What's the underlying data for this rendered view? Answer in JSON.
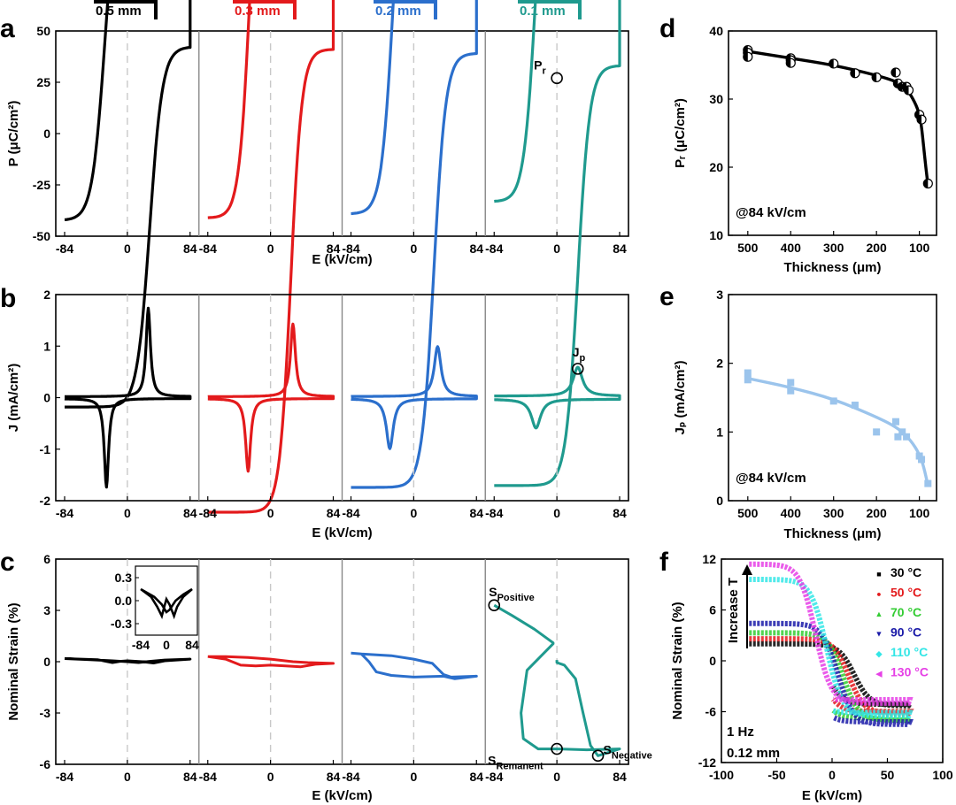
{
  "panel_letters": [
    "a",
    "b",
    "c",
    "d",
    "e",
    "f"
  ],
  "thickness_labels": [
    {
      "text": "0.5 mm",
      "color": "#000000"
    },
    {
      "text": "0.3 mm",
      "color": "#e31a1c"
    },
    {
      "text": "0.2 mm",
      "color": "#2b6fcc"
    },
    {
      "text": "0.1 mm",
      "color": "#1f9a8e"
    }
  ],
  "series_colors": [
    "#000000",
    "#e31a1c",
    "#2b6fcc",
    "#1f9a8e"
  ],
  "chart_data": [
    {
      "id": "a",
      "type": "line",
      "title": "",
      "xlabel": "E (kV/cm)",
      "ylabel": "P (μC/cm²)",
      "xticks": [
        "-84",
        "0",
        "84"
      ],
      "yticks": [
        50,
        25,
        0,
        -25,
        -50
      ],
      "ylim": [
        -50,
        50
      ],
      "annotations": [
        {
          "text": "P",
          "sub": "r",
          "series": 3,
          "x": 0,
          "y": 27
        }
      ],
      "series": [
        {
          "label": "0.5 mm",
          "x_range": [
            -84,
            84
          ],
          "pmax": 42,
          "pr": 37,
          "ec": 30,
          "shape": 17
        },
        {
          "label": "0.3 mm",
          "x_range": [
            -84,
            84
          ],
          "pmax": 41,
          "pr": 35,
          "ec": 27,
          "shape": 15
        },
        {
          "label": "0.2 mm",
          "x_range": [
            -84,
            84
          ],
          "pmax": 39,
          "pr": 32,
          "ec": 27,
          "shape": 16
        },
        {
          "label": "0.1 mm",
          "x_range": [
            -84,
            84
          ],
          "pmax": 33,
          "pr": 27,
          "ec": 28,
          "shape": 16
        }
      ]
    },
    {
      "id": "b",
      "type": "line",
      "title": "",
      "xlabel": "E (kV/cm)",
      "ylabel": "J (mA/cm²)",
      "xticks": [
        "-84",
        "0",
        "84"
      ],
      "yticks": [
        2,
        1,
        0,
        -1,
        -2
      ],
      "ylim": [
        -2,
        2
      ],
      "annotations": [
        {
          "text": "J",
          "sub": "p",
          "series": 3,
          "x": 28,
          "y": 0.56
        }
      ],
      "series": [
        {
          "label": "0.5 mm",
          "peak_x": 28,
          "peak": 1.72,
          "width": 3.5,
          "tail": 0.06
        },
        {
          "label": "0.3 mm",
          "peak_x": 30,
          "peak": 1.41,
          "width": 4.0,
          "tail": 0.06
        },
        {
          "label": "0.2 mm",
          "peak_x": 32,
          "peak": 0.97,
          "width": 5.5,
          "tail": 0.07
        },
        {
          "label": "0.1 mm",
          "peak_x": 28,
          "peak": 0.56,
          "width": 7.5,
          "tail": 0.1
        }
      ]
    },
    {
      "id": "c",
      "type": "line",
      "title": "",
      "xlabel": "E (kV/cm)",
      "ylabel": "Nominal Strain (%)",
      "xticks": [
        "-84",
        "0",
        "84"
      ],
      "yticks": [
        6,
        3,
        0,
        -3,
        -6
      ],
      "ylim": [
        -6,
        6
      ],
      "annotations": [
        {
          "text": "S",
          "sub": "Positive",
          "x": -84,
          "y": 3.3
        },
        {
          "text": "S",
          "sub": "Remanent",
          "x": 0,
          "y": -5.1
        },
        {
          "text": "S",
          "sub": "Negative",
          "x": 55,
          "y": -5.5
        }
      ],
      "series": [
        {
          "label": "0.5 mm",
          "points": [
            [
              -84,
              0.18
            ],
            [
              -40,
              0.12
            ],
            [
              -20,
              -0.05
            ],
            [
              -10,
              0.02
            ],
            [
              0,
              0.05
            ],
            [
              20,
              0.0
            ],
            [
              35,
              -0.08
            ],
            [
              50,
              0.05
            ],
            [
              84,
              0.15
            ],
            [
              50,
              0.1
            ],
            [
              30,
              0.02
            ],
            [
              15,
              -0.05
            ],
            [
              0,
              0.0
            ],
            [
              -20,
              0.05
            ],
            [
              -50,
              0.12
            ],
            [
              -84,
              0.18
            ]
          ]
        },
        {
          "label": "0.3 mm",
          "points": [
            [
              -84,
              0.3
            ],
            [
              -60,
              0.15
            ],
            [
              -40,
              -0.2
            ],
            [
              -20,
              -0.25
            ],
            [
              0,
              -0.2
            ],
            [
              20,
              -0.25
            ],
            [
              40,
              -0.3
            ],
            [
              60,
              -0.15
            ],
            [
              84,
              -0.1
            ],
            [
              50,
              -0.05
            ],
            [
              30,
              0.0
            ],
            [
              0,
              0.15
            ],
            [
              -30,
              0.25
            ],
            [
              -60,
              0.3
            ],
            [
              -84,
              0.3
            ]
          ]
        },
        {
          "label": "0.2 mm",
          "points": [
            [
              -84,
              0.5
            ],
            [
              -70,
              0.45
            ],
            [
              -60,
              0.0
            ],
            [
              -50,
              -0.6
            ],
            [
              -30,
              -0.8
            ],
            [
              0,
              -0.9
            ],
            [
              40,
              -0.85
            ],
            [
              55,
              -1.0
            ],
            [
              84,
              -0.85
            ],
            [
              50,
              -0.9
            ],
            [
              40,
              -0.75
            ],
            [
              25,
              -0.1
            ],
            [
              0,
              0.15
            ],
            [
              -30,
              0.35
            ],
            [
              -70,
              0.45
            ],
            [
              -84,
              0.5
            ]
          ]
        },
        {
          "label": "0.1 mm",
          "points": [
            [
              -84,
              3.3
            ],
            [
              -60,
              2.7
            ],
            [
              -30,
              1.9
            ],
            [
              -5,
              1.1
            ],
            [
              -5,
              1.05
            ],
            [
              -40,
              -0.5
            ],
            [
              -48,
              -3.0
            ],
            [
              -45,
              -4.5
            ],
            [
              -25,
              -5.1
            ],
            [
              0,
              -5.1
            ],
            [
              40,
              -5.15
            ],
            [
              84,
              -5.1
            ],
            [
              55,
              -5.5
            ],
            [
              45,
              -4.9
            ],
            [
              35,
              -3.0
            ],
            [
              25,
              -1.0
            ],
            [
              10,
              -0.2
            ],
            [
              0,
              -0.05
            ],
            [
              0,
              0.1
            ]
          ]
        }
      ]
    },
    {
      "id": "d",
      "type": "scatter",
      "title": "",
      "xlabel": "Thickness (μm)",
      "ylabel": "Pᵣ (μC/cm²)",
      "xticks": [
        500,
        400,
        300,
        200,
        100
      ],
      "xlim": [
        545,
        60
      ],
      "yticks": [
        40,
        30,
        20,
        10
      ],
      "ylim": [
        10,
        40
      ],
      "note": "@84 kV/cm",
      "points": [
        [
          500,
          37.2
        ],
        [
          500,
          36.8
        ],
        [
          500,
          36.2
        ],
        [
          400,
          36.0
        ],
        [
          400,
          35.7
        ],
        [
          400,
          35.3
        ],
        [
          300,
          35.2
        ],
        [
          250,
          33.8
        ],
        [
          200,
          33.2
        ],
        [
          155,
          33.9
        ],
        [
          150,
          32.3
        ],
        [
          140,
          31.8
        ],
        [
          130,
          31.8
        ],
        [
          125,
          31.3
        ],
        [
          100,
          27.7
        ],
        [
          95,
          27.0
        ],
        [
          80,
          17.6
        ]
      ],
      "fit": [
        [
          500,
          37.0
        ],
        [
          400,
          36.0
        ],
        [
          300,
          35.0
        ],
        [
          200,
          33.5
        ],
        [
          150,
          32.5
        ],
        [
          130,
          31.6
        ],
        [
          110,
          29.5
        ],
        [
          100,
          27.8
        ],
        [
          95,
          26.0
        ],
        [
          90,
          23.0
        ],
        [
          85,
          20.0
        ],
        [
          80,
          17.4
        ]
      ],
      "color": "#000000"
    },
    {
      "id": "e",
      "type": "scatter",
      "title": "",
      "xlabel": "Thickness (μm)",
      "ylabel": "Jₚ (mA/cm²)",
      "xticks": [
        500,
        400,
        300,
        200,
        100
      ],
      "xlim": [
        545,
        60
      ],
      "yticks": [
        3,
        2,
        1,
        0
      ],
      "ylim": [
        0,
        3
      ],
      "note": "@84 kV/cm",
      "points": [
        [
          500,
          1.86
        ],
        [
          500,
          1.76
        ],
        [
          400,
          1.72
        ],
        [
          400,
          1.6
        ],
        [
          300,
          1.45
        ],
        [
          250,
          1.39
        ],
        [
          200,
          1.0
        ],
        [
          155,
          1.15
        ],
        [
          150,
          0.93
        ],
        [
          140,
          1.0
        ],
        [
          130,
          0.93
        ],
        [
          100,
          0.65
        ],
        [
          95,
          0.6
        ],
        [
          80,
          0.25
        ]
      ],
      "fit": [
        [
          500,
          1.78
        ],
        [
          400,
          1.65
        ],
        [
          300,
          1.48
        ],
        [
          200,
          1.22
        ],
        [
          150,
          1.06
        ],
        [
          120,
          0.88
        ],
        [
          100,
          0.68
        ],
        [
          90,
          0.5
        ],
        [
          80,
          0.22
        ]
      ],
      "color": "#9bc4ec"
    },
    {
      "id": "f",
      "type": "line",
      "title": "",
      "xlabel": "E (kV/cm)",
      "ylabel": "Nominal Strain (%)",
      "xticks": [
        -100,
        -50,
        0,
        50,
        100
      ],
      "xlim": [
        -100,
        100
      ],
      "yticks": [
        12,
        6,
        0,
        -6,
        -12
      ],
      "ylim": [
        -12,
        12
      ],
      "notes": [
        "1 Hz",
        "0.12 mm"
      ],
      "arrow_label": "Increase T",
      "series": [
        {
          "name": "30 °C",
          "marker": "■",
          "color": "#000000",
          "s_start": 2.0,
          "s_end": -5.3,
          "ec": 20
        },
        {
          "name": "50 °C",
          "marker": "●",
          "color": "#e31a1c",
          "s_start": 2.6,
          "s_end": -6.2,
          "ec": 15
        },
        {
          "name": "70 °C",
          "marker": "▲",
          "color": "#33cc33",
          "s_start": 3.3,
          "s_end": -7.0,
          "ec": 10
        },
        {
          "name": "90 °C",
          "marker": "▼",
          "color": "#1a1aa8",
          "s_start": 4.4,
          "s_end": -7.5,
          "ec": 5
        },
        {
          "name": "110 °C",
          "marker": "◆",
          "color": "#33e6e6",
          "s_start": 9.6,
          "s_end": -6.5,
          "ec": -5
        },
        {
          "name": "130 °C",
          "marker": "◀",
          "color": "#e640e6",
          "s_start": 11.4,
          "s_end": -5.0,
          "ec": -15
        }
      ]
    }
  ]
}
